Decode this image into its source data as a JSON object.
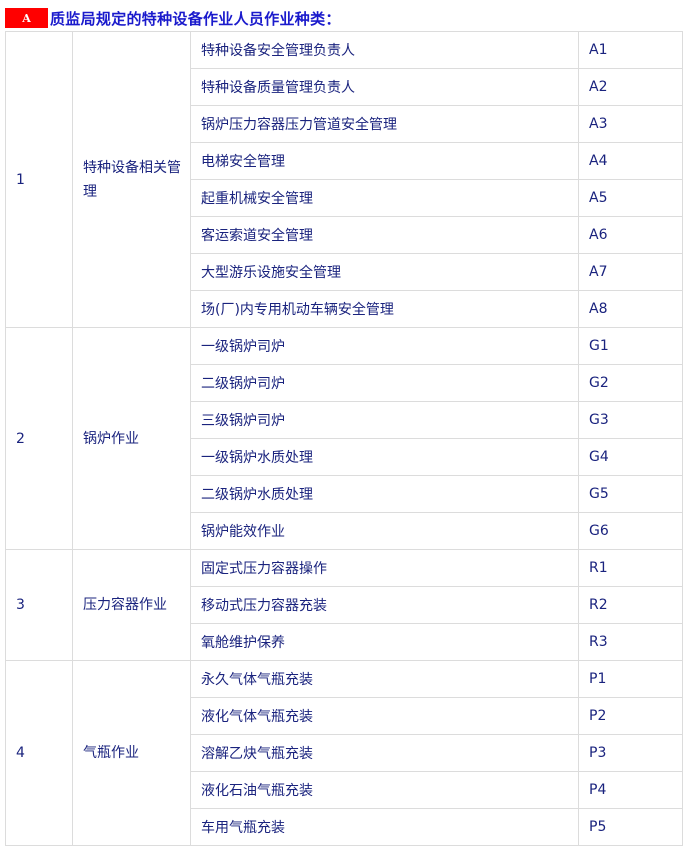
{
  "header": {
    "badge": "A",
    "title": "质监局规定的特种设备作业人员作业种类："
  },
  "groups": [
    {
      "no": "1",
      "category": "特种设备相关管理",
      "items": [
        {
          "name": "特种设备安全管理负责人",
          "code": "A1"
        },
        {
          "name": "特种设备质量管理负责人",
          "code": "A2"
        },
        {
          "name": "锅炉压力容器压力管道安全管理",
          "code": "A3"
        },
        {
          "name": "电梯安全管理",
          "code": "A4"
        },
        {
          "name": "起重机械安全管理",
          "code": "A5"
        },
        {
          "name": "客运索道安全管理",
          "code": "A6"
        },
        {
          "name": "大型游乐设施安全管理",
          "code": "A7"
        },
        {
          "name": "场(厂)内专用机动车辆安全管理",
          "code": "A8"
        }
      ]
    },
    {
      "no": "2",
      "category": "锅炉作业",
      "items": [
        {
          "name": "一级锅炉司炉",
          "code": "G1"
        },
        {
          "name": "二级锅炉司炉",
          "code": "G2"
        },
        {
          "name": "三级锅炉司炉",
          "code": "G3"
        },
        {
          "name": "一级锅炉水质处理",
          "code": "G4"
        },
        {
          "name": "二级锅炉水质处理",
          "code": "G5"
        },
        {
          "name": "锅炉能效作业",
          "code": "G6"
        }
      ]
    },
    {
      "no": "3",
      "category": "压力容器作业",
      "items": [
        {
          "name": "固定式压力容器操作",
          "code": "R1"
        },
        {
          "name": "移动式压力容器充装",
          "code": "R2"
        },
        {
          "name": "氧舱维护保养",
          "code": "R3"
        }
      ]
    },
    {
      "no": "4",
      "category": "气瓶作业",
      "items": [
        {
          "name": "永久气体气瓶充装",
          "code": "P1"
        },
        {
          "name": "液化气体气瓶充装",
          "code": "P2"
        },
        {
          "name": "溶解乙炔气瓶充装",
          "code": "P3"
        },
        {
          "name": "液化石油气瓶充装",
          "code": "P4"
        },
        {
          "name": "车用气瓶充装",
          "code": "P5"
        }
      ]
    }
  ]
}
